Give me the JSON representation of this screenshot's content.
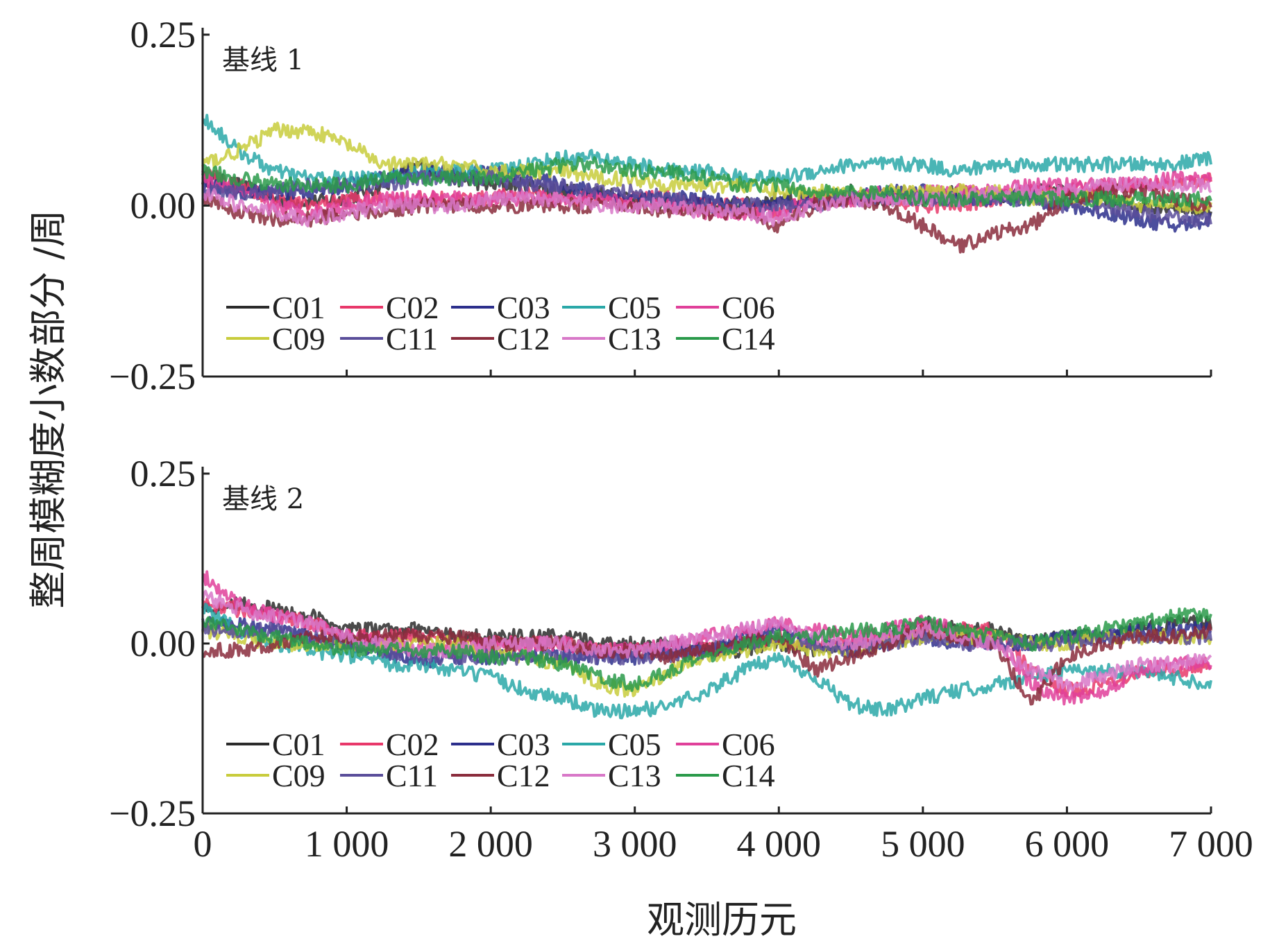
{
  "chart_data": {
    "type": "line",
    "ylabel": "整周模糊度小数部分 /周",
    "xlabel": "观测历元",
    "xlim": [
      0,
      7000
    ],
    "x_ticks": [
      0,
      1000,
      2000,
      3000,
      4000,
      5000,
      6000,
      7000
    ],
    "x_tick_labels": [
      "0",
      "1 000",
      "2 000",
      "3 000",
      "4 000",
      "5 000",
      "6 000",
      "7 000"
    ],
    "ylim": [
      -0.25,
      0.25
    ],
    "y_ticks": [
      -0.25,
      0.0,
      0.25
    ],
    "y_tick_labels": [
      "−0.25",
      "0.00",
      "0.25"
    ],
    "legend": {
      "placement": "lower-left",
      "columns": 5
    },
    "series_styles": [
      {
        "name": "C01",
        "color": "#2b2b2b"
      },
      {
        "name": "C02",
        "color": "#e8386a"
      },
      {
        "name": "C03",
        "color": "#2c2f8c"
      },
      {
        "name": "C05",
        "color": "#2aa8a8"
      },
      {
        "name": "C06",
        "color": "#e0409a"
      },
      {
        "name": "C09",
        "color": "#c8cc3c"
      },
      {
        "name": "C11",
        "color": "#5a4e9a"
      },
      {
        "name": "C12",
        "color": "#8a2c3c"
      },
      {
        "name": "C13",
        "color": "#d878c8"
      },
      {
        "name": "C14",
        "color": "#2a9a4a"
      }
    ],
    "panels": [
      {
        "label": "基线 1",
        "x": [
          0,
          250,
          500,
          750,
          1000,
          1250,
          1500,
          1750,
          2000,
          2250,
          2500,
          2750,
          3000,
          3250,
          3500,
          3750,
          4000,
          4250,
          4500,
          4750,
          5000,
          5250,
          5500,
          5750,
          6000,
          6250,
          6500,
          6750,
          7000
        ],
        "series": [
          {
            "name": "C01",
            "values": [
              0.04,
              0.03,
              0.01,
              0.005,
              0.01,
              0.03,
              0.06,
              0.04,
              0.03,
              0.03,
              0.02,
              0.02,
              0.01,
              0.0,
              0.0,
              0.0,
              0.01,
              0.01,
              0.02,
              0.01,
              0.01,
              0.02,
              0.01,
              0.02,
              0.02,
              0.01,
              0.0,
              0.0,
              -0.01
            ]
          },
          {
            "name": "C02",
            "values": [
              0.05,
              0.03,
              0.01,
              0.0,
              0.01,
              0.01,
              0.01,
              0.01,
              0.01,
              0.02,
              0.01,
              0.01,
              0.01,
              0.01,
              0.0,
              0.0,
              -0.01,
              0.01,
              0.01,
              0.01,
              0.0,
              0.0,
              0.01,
              0.02,
              0.02,
              0.03,
              0.03,
              0.03,
              0.04
            ]
          },
          {
            "name": "C03",
            "values": [
              0.03,
              0.02,
              0.02,
              0.02,
              0.03,
              0.04,
              0.05,
              0.05,
              0.05,
              0.04,
              0.03,
              0.02,
              0.01,
              0.01,
              0.01,
              0.0,
              0.0,
              0.01,
              0.01,
              0.02,
              0.02,
              0.01,
              0.01,
              0.01,
              0.0,
              -0.01,
              -0.02,
              -0.03,
              -0.02
            ]
          },
          {
            "name": "C05",
            "values": [
              0.13,
              0.08,
              0.05,
              0.04,
              0.04,
              0.04,
              0.05,
              0.05,
              0.05,
              0.06,
              0.07,
              0.07,
              0.06,
              0.05,
              0.05,
              0.04,
              0.04,
              0.05,
              0.06,
              0.06,
              0.06,
              0.05,
              0.06,
              0.06,
              0.06,
              0.06,
              0.06,
              0.06,
              0.07
            ]
          },
          {
            "name": "C06",
            "values": [
              0.04,
              0.02,
              0.0,
              -0.01,
              0.0,
              0.01,
              0.01,
              0.01,
              0.01,
              0.01,
              0.01,
              0.01,
              0.0,
              0.0,
              -0.01,
              -0.01,
              -0.01,
              0.01,
              0.01,
              0.02,
              0.02,
              0.02,
              0.02,
              0.03,
              0.03,
              0.03,
              0.03,
              0.04,
              0.04
            ]
          },
          {
            "name": "C09",
            "values": [
              0.06,
              0.08,
              0.11,
              0.11,
              0.09,
              0.06,
              0.06,
              0.06,
              0.05,
              0.05,
              0.05,
              0.04,
              0.04,
              0.03,
              0.03,
              0.03,
              0.02,
              0.02,
              0.02,
              0.02,
              0.02,
              0.02,
              0.02,
              0.01,
              0.01,
              0.01,
              0.0,
              0.0,
              0.0
            ]
          },
          {
            "name": "C11",
            "values": [
              0.02,
              0.02,
              0.02,
              0.03,
              0.03,
              0.03,
              0.04,
              0.04,
              0.04,
              0.03,
              0.03,
              0.02,
              0.02,
              0.01,
              0.0,
              0.0,
              0.0,
              0.0,
              0.01,
              0.01,
              0.01,
              0.01,
              0.01,
              0.01,
              0.0,
              0.0,
              -0.01,
              -0.02,
              -0.02
            ]
          },
          {
            "name": "C12",
            "values": [
              0.01,
              -0.01,
              -0.02,
              -0.02,
              -0.01,
              -0.01,
              0.0,
              0.0,
              0.0,
              0.0,
              0.0,
              0.0,
              0.0,
              -0.01,
              -0.01,
              -0.01,
              -0.03,
              0.0,
              0.01,
              0.0,
              -0.03,
              -0.06,
              -0.04,
              -0.03,
              0.01,
              0.02,
              0.02,
              0.01,
              0.0
            ]
          },
          {
            "name": "C13",
            "values": [
              0.02,
              0.0,
              -0.01,
              -0.02,
              -0.01,
              0.0,
              0.0,
              0.0,
              0.01,
              0.01,
              0.01,
              0.0,
              0.0,
              0.0,
              -0.01,
              -0.01,
              -0.02,
              0.0,
              0.01,
              0.01,
              0.01,
              0.01,
              0.02,
              0.02,
              0.02,
              0.03,
              0.03,
              0.03,
              0.03
            ]
          },
          {
            "name": "C14",
            "values": [
              0.05,
              0.04,
              0.03,
              0.03,
              0.03,
              0.04,
              0.04,
              0.04,
              0.04,
              0.05,
              0.06,
              0.06,
              0.05,
              0.05,
              0.04,
              0.03,
              0.03,
              0.02,
              0.02,
              0.02,
              0.01,
              0.01,
              0.01,
              0.01,
              0.01,
              0.01,
              0.01,
              0.01,
              0.01
            ]
          }
        ]
      },
      {
        "label": "基线 2",
        "x": [
          0,
          250,
          500,
          750,
          1000,
          1250,
          1500,
          1750,
          2000,
          2250,
          2500,
          2750,
          3000,
          3250,
          3500,
          3750,
          4000,
          4250,
          4500,
          4750,
          5000,
          5250,
          5500,
          5750,
          6000,
          6250,
          6500,
          6750,
          7000
        ],
        "series": [
          {
            "name": "C01",
            "values": [
              0.05,
              0.06,
              0.05,
              0.04,
              0.02,
              0.02,
              0.02,
              0.01,
              0.01,
              0.01,
              0.01,
              0.0,
              0.0,
              0.0,
              -0.01,
              -0.01,
              0.0,
              -0.01,
              0.0,
              0.01,
              0.03,
              0.02,
              0.02,
              0.0,
              0.01,
              0.01,
              0.02,
              0.03,
              0.03
            ]
          },
          {
            "name": "C02",
            "values": [
              0.06,
              0.05,
              0.04,
              0.03,
              0.01,
              0.01,
              0.01,
              0.0,
              0.0,
              0.0,
              0.0,
              -0.01,
              -0.01,
              -0.01,
              -0.01,
              0.0,
              0.01,
              0.0,
              0.0,
              0.01,
              0.02,
              0.02,
              0.02,
              -0.04,
              -0.07,
              -0.06,
              -0.04,
              -0.04,
              -0.03
            ]
          },
          {
            "name": "C03",
            "values": [
              0.03,
              0.03,
              0.02,
              0.01,
              0.0,
              -0.01,
              -0.03,
              -0.02,
              -0.02,
              -0.02,
              -0.02,
              -0.02,
              -0.02,
              -0.01,
              -0.01,
              0.01,
              0.02,
              0.0,
              -0.01,
              0.0,
              0.01,
              0.0,
              0.0,
              0.0,
              0.01,
              0.01,
              0.02,
              0.02,
              0.02
            ]
          },
          {
            "name": "C05",
            "values": [
              0.05,
              0.02,
              0.0,
              -0.01,
              -0.02,
              -0.03,
              -0.03,
              -0.04,
              -0.05,
              -0.07,
              -0.08,
              -0.1,
              -0.1,
              -0.09,
              -0.07,
              -0.04,
              -0.02,
              -0.05,
              -0.09,
              -0.1,
              -0.08,
              -0.07,
              -0.06,
              -0.05,
              -0.04,
              -0.04,
              -0.04,
              -0.05,
              -0.06
            ]
          },
          {
            "name": "C06",
            "values": [
              0.1,
              0.06,
              0.04,
              0.03,
              0.01,
              0.0,
              -0.01,
              -0.01,
              0.0,
              0.0,
              0.0,
              -0.01,
              -0.01,
              0.0,
              0.01,
              0.02,
              0.03,
              0.02,
              0.01,
              0.02,
              0.03,
              0.02,
              0.01,
              -0.06,
              -0.08,
              -0.07,
              -0.04,
              -0.03,
              -0.03
            ]
          },
          {
            "name": "C09",
            "values": [
              0.02,
              0.01,
              0.0,
              0.0,
              0.0,
              0.0,
              0.0,
              0.0,
              -0.01,
              -0.02,
              -0.03,
              -0.06,
              -0.07,
              -0.04,
              -0.02,
              -0.01,
              0.0,
              -0.01,
              -0.01,
              0.0,
              0.01,
              0.01,
              0.01,
              0.0,
              0.0,
              0.01,
              0.01,
              0.01,
              0.01
            ]
          },
          {
            "name": "C11",
            "values": [
              0.02,
              0.02,
              0.02,
              0.01,
              0.0,
              -0.01,
              -0.02,
              -0.02,
              -0.02,
              -0.02,
              -0.02,
              -0.02,
              -0.02,
              -0.02,
              -0.01,
              0.0,
              0.01,
              0.0,
              -0.01,
              0.0,
              0.01,
              0.0,
              0.0,
              0.0,
              0.0,
              0.01,
              0.01,
              0.01,
              0.01
            ]
          },
          {
            "name": "C12",
            "values": [
              -0.01,
              -0.01,
              0.0,
              0.01,
              0.01,
              0.01,
              0.01,
              0.01,
              0.0,
              0.0,
              0.0,
              -0.01,
              -0.01,
              -0.02,
              -0.01,
              0.0,
              0.01,
              -0.04,
              -0.02,
              0.0,
              0.02,
              0.01,
              0.0,
              -0.09,
              -0.02,
              0.0,
              0.01,
              0.01,
              0.02
            ]
          },
          {
            "name": "C13",
            "values": [
              0.07,
              0.05,
              0.04,
              0.03,
              0.01,
              0.0,
              -0.01,
              -0.01,
              0.0,
              0.0,
              0.0,
              -0.01,
              -0.01,
              0.0,
              0.01,
              0.02,
              0.03,
              0.01,
              0.0,
              0.01,
              0.02,
              0.01,
              0.0,
              -0.04,
              -0.06,
              -0.05,
              -0.03,
              -0.03,
              -0.02
            ]
          },
          {
            "name": "C14",
            "values": [
              0.03,
              0.02,
              0.01,
              0.0,
              -0.01,
              -0.01,
              -0.01,
              -0.01,
              -0.02,
              -0.02,
              -0.03,
              -0.05,
              -0.06,
              -0.04,
              -0.02,
              0.0,
              0.01,
              0.01,
              0.02,
              0.02,
              0.03,
              0.02,
              0.01,
              0.0,
              0.01,
              0.02,
              0.03,
              0.04,
              0.04
            ]
          }
        ]
      }
    ]
  }
}
